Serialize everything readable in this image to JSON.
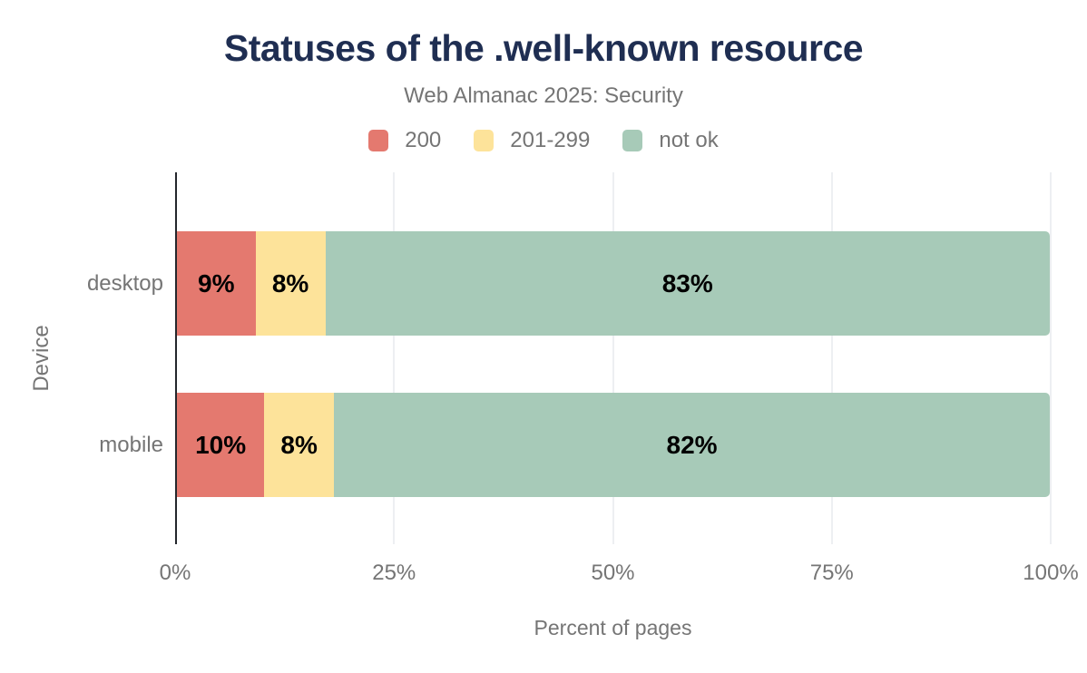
{
  "chart_data": {
    "type": "bar",
    "orientation": "horizontal-stacked",
    "title": "Statuses of the .well-known resource",
    "subtitle": "Web Almanac 2025: Security",
    "xlabel": "Percent of pages",
    "ylabel": "Device",
    "categories": [
      "desktop",
      "mobile"
    ],
    "series": [
      {
        "name": "200",
        "color": "#e4796f",
        "values": [
          9,
          10
        ]
      },
      {
        "name": "201-299",
        "color": "#fde39a",
        "values": [
          8,
          8
        ]
      },
      {
        "name": "not ok",
        "color": "#a7cab8",
        "values": [
          83,
          82
        ]
      }
    ],
    "data_labels": [
      [
        "9%",
        "8%",
        "83%"
      ],
      [
        "10%",
        "8%",
        "82%"
      ]
    ],
    "xlim": [
      0,
      100
    ],
    "xticks": [
      0,
      25,
      50,
      75,
      100
    ],
    "xtick_labels": [
      "0%",
      "25%",
      "50%",
      "75%",
      "100%"
    ],
    "legend_position": "top",
    "grid": true,
    "colors": {
      "title": "#1f2e52",
      "muted_text": "#757575",
      "axis_line": "#24272c",
      "gridline": "#edeff2",
      "data_label": "#000000",
      "background": "#ffffff"
    }
  }
}
